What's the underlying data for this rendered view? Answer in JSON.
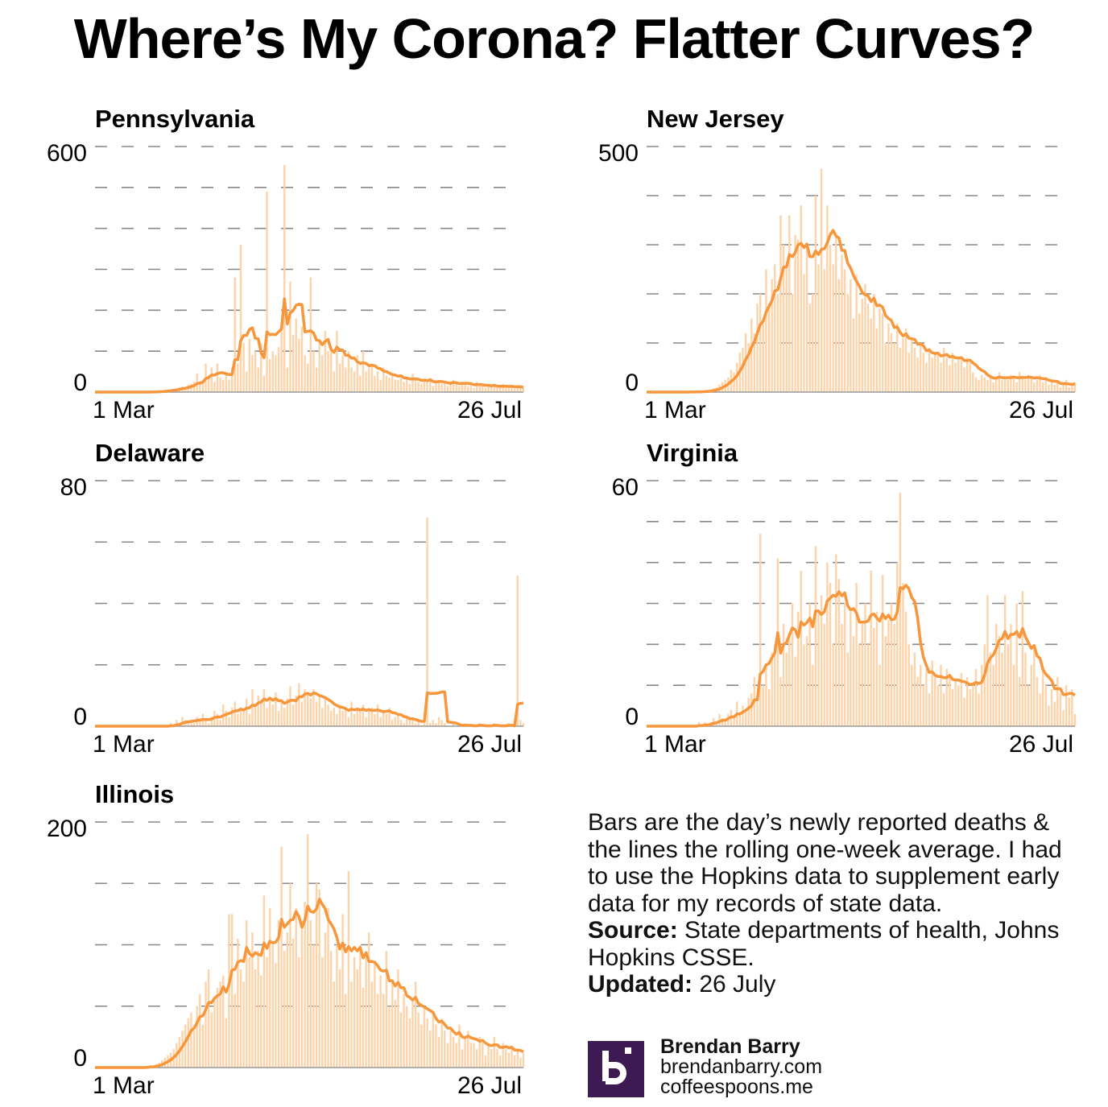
{
  "title": "Where’s My Corona? Flatter Curves?",
  "colors": {
    "bar": "#fdd3aa",
    "line": "#f7963a",
    "grid": "#888888",
    "logo": "#3d1a52"
  },
  "note": {
    "text": "Bars are the day’s newly reported deaths & the lines the rolling one-week average. I had to use the Hopkins data to supplement early data for my records of state data.",
    "source_label": "Source:",
    "source_text": "State departments of health, Johns Hopkins CSSE.",
    "updated_label": "Updated:",
    "updated_text": "26 July"
  },
  "brand": {
    "logo_letter": "b",
    "name": "Brendan Barry",
    "site1": "brendanbarry.com",
    "site2": "coffeespoons.me"
  },
  "chart_data": [
    {
      "type": "bar+line",
      "title": "Pennsylvania",
      "xlabel": "",
      "ylabel": "",
      "x_start": "1 Mar",
      "x_end": "26 Jul",
      "x_tick_labels": [
        "1 Mar",
        "26 Jul"
      ],
      "y_tick_labels": [
        "0",
        "600"
      ],
      "ylim": [
        0,
        600
      ],
      "grid_step": 100,
      "grid": true,
      "line": "7-day rolling average",
      "values": [
        0,
        0,
        0,
        0,
        0,
        0,
        0,
        0,
        0,
        0,
        0,
        0,
        0,
        0,
        0,
        0,
        0,
        0,
        0,
        0,
        1,
        2,
        2,
        3,
        4,
        5,
        6,
        8,
        9,
        12,
        14,
        12,
        18,
        20,
        25,
        45,
        20,
        30,
        70,
        40,
        60,
        25,
        70,
        35,
        30,
        50,
        30,
        60,
        280,
        70,
        360,
        120,
        50,
        130,
        90,
        100,
        60,
        120,
        40,
        490,
        80,
        100,
        90,
        110,
        170,
        555,
        60,
        270,
        140,
        180,
        130,
        160,
        90,
        70,
        280,
        100,
        60,
        120,
        90,
        150,
        100,
        110,
        50,
        150,
        70,
        90,
        60,
        100,
        60,
        50,
        90,
        40,
        100,
        50,
        60,
        70,
        40,
        50,
        30,
        60,
        40,
        35,
        45,
        30,
        30,
        40,
        25,
        35,
        20,
        45,
        30,
        25,
        20,
        30,
        25,
        35,
        15,
        25,
        30,
        20,
        20,
        15,
        25,
        30,
        20,
        15,
        25,
        20,
        15,
        20,
        10,
        25,
        15,
        20,
        10,
        15,
        12,
        18,
        10,
        15,
        20,
        10,
        12,
        15,
        8,
        14,
        12,
        10
      ]
    },
    {
      "type": "bar+line",
      "title": "New Jersey",
      "xlabel": "",
      "ylabel": "",
      "x_start": "1 Mar",
      "x_end": "26 Jul",
      "x_tick_labels": [
        "1 Mar",
        "26 Jul"
      ],
      "y_tick_labels": [
        "0",
        "500"
      ],
      "ylim": [
        0,
        500
      ],
      "grid_step": 100,
      "grid": true,
      "line": "7-day rolling average",
      "values": [
        0,
        0,
        0,
        0,
        0,
        0,
        0,
        0,
        0,
        0,
        0,
        0,
        0,
        0,
        0,
        1,
        0,
        1,
        2,
        1,
        2,
        3,
        5,
        8,
        10,
        15,
        20,
        25,
        30,
        45,
        40,
        60,
        80,
        90,
        120,
        100,
        150,
        120,
        180,
        200,
        140,
        250,
        180,
        230,
        260,
        200,
        360,
        300,
        250,
        360,
        200,
        320,
        310,
        380,
        240,
        300,
        180,
        200,
        400,
        260,
        455,
        250,
        380,
        300,
        260,
        320,
        230,
        280,
        250,
        200,
        230,
        150,
        240,
        160,
        190,
        220,
        180,
        150,
        200,
        130,
        170,
        160,
        100,
        140,
        120,
        100,
        140,
        90,
        110,
        130,
        80,
        110,
        90,
        70,
        100,
        80,
        60,
        90,
        70,
        80,
        75,
        60,
        90,
        70,
        55,
        80,
        60,
        70,
        65,
        50,
        70,
        60,
        40,
        30,
        25,
        35,
        30,
        25,
        35,
        20,
        30,
        40,
        25,
        30,
        25,
        35,
        30,
        20,
        40,
        30,
        25,
        35,
        30,
        20,
        25,
        35,
        20,
        25,
        15,
        20,
        15,
        20,
        10,
        15,
        25,
        10,
        15,
        20
      ]
    },
    {
      "type": "bar+line",
      "title": "Delaware",
      "xlabel": "",
      "ylabel": "",
      "x_start": "1 Mar",
      "x_end": "26 Jul",
      "x_tick_labels": [
        "1 Mar",
        "26 Jul"
      ],
      "y_tick_labels": [
        "0",
        "80"
      ],
      "ylim": [
        0,
        80
      ],
      "grid_step": 20,
      "grid": true,
      "line": "7-day rolling average",
      "values": [
        0,
        0,
        0,
        0,
        0,
        0,
        0,
        0,
        0,
        0,
        0,
        0,
        0,
        0,
        0,
        0,
        0,
        0,
        0,
        0,
        0,
        0,
        0,
        0,
        0,
        0,
        1,
        0,
        2,
        1,
        3,
        2,
        1,
        2,
        1,
        3,
        2,
        4,
        2,
        1,
        3,
        5,
        4,
        2,
        7,
        5,
        3,
        6,
        8,
        4,
        6,
        5,
        9,
        4,
        12,
        7,
        10,
        8,
        12,
        6,
        9,
        7,
        11,
        5,
        8,
        6,
        9,
        13,
        7,
        10,
        14,
        8,
        12,
        11,
        9,
        12,
        8,
        10,
        6,
        9,
        7,
        5,
        6,
        4,
        7,
        5,
        6,
        3,
        8,
        4,
        6,
        5,
        7,
        3,
        5,
        6,
        4,
        7,
        3,
        5,
        4,
        6,
        2,
        3,
        4,
        2,
        1,
        3,
        2,
        2,
        1,
        2,
        0,
        1,
        68,
        1,
        2,
        1,
        3,
        2,
        1,
        0,
        0,
        1,
        0,
        0,
        0,
        1,
        0,
        0,
        0,
        0,
        1,
        0,
        0,
        0,
        0,
        1,
        0,
        0,
        0,
        0,
        1,
        0,
        0,
        49,
        2,
        1
      ]
    },
    {
      "type": "bar+line",
      "title": "Virginia",
      "xlabel": "",
      "ylabel": "",
      "x_start": "1 Mar",
      "x_end": "26 Jul",
      "x_tick_labels": [
        "1 Mar",
        "26 Jul"
      ],
      "y_tick_labels": [
        "0",
        "60"
      ],
      "ylim": [
        0,
        60
      ],
      "grid_step": 10,
      "grid": true,
      "line": "7-day rolling average",
      "values": [
        0,
        0,
        0,
        0,
        0,
        0,
        0,
        0,
        0,
        0,
        0,
        0,
        0,
        0,
        0,
        0,
        0,
        0,
        1,
        0,
        1,
        0,
        1,
        2,
        1,
        3,
        2,
        1,
        3,
        4,
        2,
        6,
        3,
        5,
        4,
        7,
        8,
        12,
        6,
        47,
        10,
        15,
        9,
        18,
        20,
        41,
        12,
        25,
        18,
        22,
        30,
        17,
        28,
        38,
        20,
        22,
        30,
        15,
        44,
        28,
        32,
        25,
        40,
        35,
        20,
        42,
        36,
        25,
        30,
        18,
        28,
        22,
        35,
        20,
        25,
        30,
        20,
        38,
        24,
        28,
        15,
        37,
        22,
        26,
        30,
        25,
        40,
        57,
        35,
        28,
        20,
        15,
        18,
        12,
        15,
        10,
        14,
        8,
        16,
        12,
        10,
        15,
        8,
        14,
        12,
        9,
        11,
        10,
        13,
        7,
        12,
        9,
        10,
        14,
        8,
        15,
        20,
        32,
        18,
        15,
        25,
        22,
        18,
        32,
        20,
        25,
        15,
        30,
        12,
        33,
        18,
        10,
        15,
        20,
        12,
        8,
        14,
        10,
        5,
        9,
        6,
        12,
        8,
        4,
        10,
        7,
        9,
        3
      ]
    },
    {
      "type": "bar+line",
      "title": "Illinois",
      "xlabel": "",
      "ylabel": "",
      "x_start": "1 Mar",
      "x_end": "26 Jul",
      "x_tick_labels": [
        "1 Mar",
        "26 Jul"
      ],
      "y_tick_labels": [
        "0",
        "200"
      ],
      "ylim": [
        0,
        200
      ],
      "grid_step": 50,
      "grid": true,
      "line": "7-day rolling average",
      "values": [
        0,
        0,
        0,
        0,
        0,
        0,
        0,
        0,
        0,
        0,
        0,
        0,
        0,
        0,
        0,
        0,
        0,
        0,
        1,
        2,
        1,
        3,
        4,
        6,
        8,
        10,
        12,
        15,
        20,
        25,
        30,
        35,
        40,
        45,
        30,
        50,
        60,
        35,
        70,
        80,
        45,
        55,
        65,
        70,
        75,
        40,
        125,
        125,
        60,
        105,
        80,
        70,
        120,
        90,
        110,
        80,
        95,
        75,
        140,
        90,
        130,
        100,
        85,
        120,
        180,
        95,
        110,
        150,
        105,
        130,
        90,
        120,
        135,
        190,
        120,
        100,
        150,
        145,
        90,
        110,
        130,
        95,
        70,
        100,
        80,
        125,
        60,
        160,
        70,
        90,
        80,
        100,
        65,
        90,
        110,
        70,
        85,
        60,
        75,
        60,
        95,
        50,
        70,
        55,
        80,
        45,
        60,
        50,
        40,
        55,
        70,
        45,
        35,
        50,
        40,
        30,
        45,
        35,
        25,
        40,
        30,
        20,
        30,
        25,
        20,
        35,
        15,
        25,
        30,
        20,
        20,
        15,
        25,
        20,
        10,
        20,
        15,
        25,
        15,
        10,
        20,
        15,
        12,
        18,
        10,
        15,
        8,
        12
      ]
    }
  ]
}
